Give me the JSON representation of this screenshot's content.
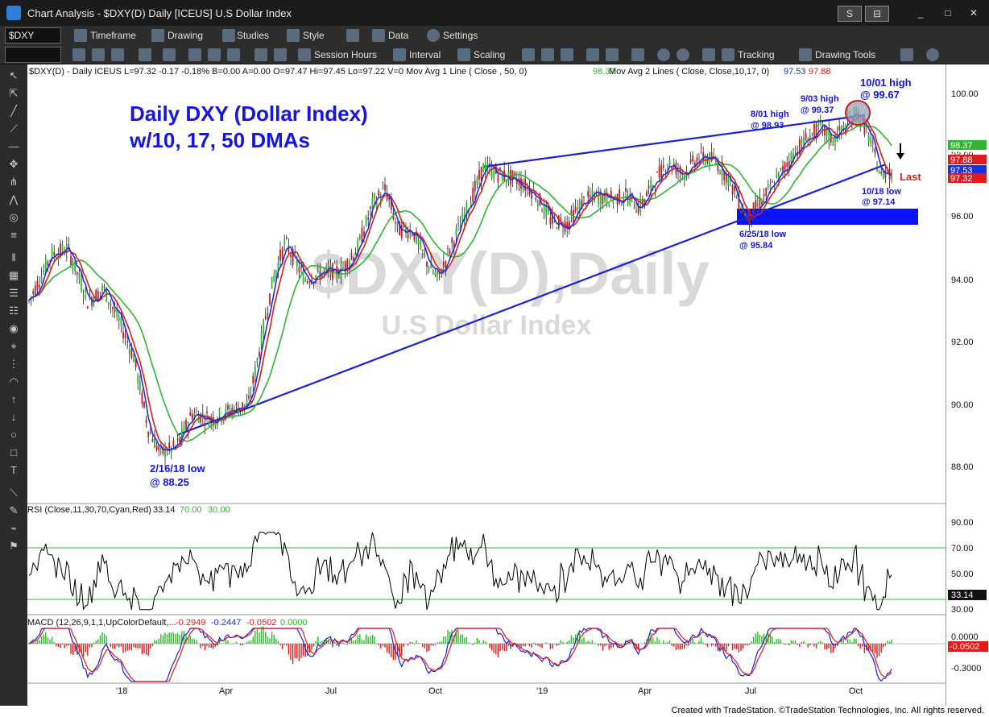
{
  "window": {
    "title": "Chart Analysis - $DXY(D) Daily [ICEUS] U.S Dollar Index",
    "buttons": [
      "S",
      "⊟",
      "_",
      "□",
      "✕"
    ]
  },
  "toolbar1": {
    "symbol": "$DXY",
    "items": [
      "Timeframe",
      "Drawing",
      "Studies",
      "Style",
      "Data",
      "Settings"
    ]
  },
  "toolbar2": {
    "items": [
      "Session Hours",
      "Interval",
      "Scaling",
      "Tracking",
      "Drawing Tools"
    ]
  },
  "chart": {
    "header": "$DXY(D) - Daily  ICEUS  L=97.32  -0.17  -0.18%  B=0.00  A=0.00  O=97.47  Hi=97.45  Lo=97.22  V=0  Mov Avg 1 Line (    Close , 50,        0)",
    "header_ma1": "98.37",
    "header_ma2_label": "Mov Avg 2 Lines (  Close,  Close,10,17,  0)",
    "header_ma2_v1": "97.53",
    "header_ma2_v2": "97.88",
    "title_line1": "Daily DXY (Dollar Index)",
    "title_line2": "w/10, 17, 50 DMAs",
    "watermark_line1": "$DXY(D),Daily",
    "watermark_line2": "U.S Dollar Index",
    "annotations": {
      "low_2_16": [
        "2/16/18 low",
        "@ 88.25"
      ],
      "low_6_25": [
        "6/25/18 low",
        "@ 95.84"
      ],
      "high_8_01": [
        "8/01 high",
        "@ 98.93"
      ],
      "high_9_03": [
        "9/03 high",
        "@ 99.37"
      ],
      "high_10_01": [
        "10/01 high",
        "@ 99.67"
      ],
      "low_10_18": [
        "10/18 low",
        "@ 97.14"
      ],
      "last": "Last"
    },
    "price_axis": [
      "100.00",
      "98.00",
      "96.00",
      "94.00",
      "92.00",
      "90.00",
      "88.00"
    ],
    "price_tags": [
      {
        "value": "98.37",
        "color": "#2fb82f"
      },
      {
        "value": "97.88",
        "color": "#e11b1b"
      },
      {
        "value": "97.53",
        "color": "#1b2fe0"
      },
      {
        "value": "97.32",
        "color": "#e11b1b"
      }
    ],
    "price_tag_hidden": "98.00",
    "date_axis": [
      "'18",
      "Apr",
      "Jul",
      "Oct",
      "'19",
      "Apr",
      "Jul",
      "Oct"
    ]
  },
  "rsi": {
    "header": "RSI (Close,11,30,70,Cyan,Red)",
    "value": "33.14",
    "overbought": "70.00",
    "oversold": "30.00",
    "axis": [
      "90.00",
      "70.00",
      "50.00",
      "30.00"
    ],
    "tag": "33.14"
  },
  "macd": {
    "header": "MACD (12,26,9,1,1,UpColorDefault,...",
    "v1": "-0.2949",
    "v2": "-0.2447",
    "v3": "-0.0502",
    "v4": "0.0000",
    "axis": [
      "0.0000",
      "-0.3000"
    ],
    "tag": "-0.0502"
  },
  "footer": "Created with TradeStation. ©TradeStation Technologies, Inc. All rights reserved.",
  "colors": {
    "price_line": "#1a23d6",
    "ma10": "#1b2fe0",
    "ma17": "#e11b1b",
    "ma50": "#2fb82f",
    "support_box": "#0a12ff",
    "rsi_line": "#000000",
    "macd_line": "#1a23d6",
    "signal_line": "#e11b1b"
  },
  "chart_data": {
    "type": "line",
    "key_points": [
      {
        "x": "2018-02-16",
        "y": 88.25
      },
      {
        "x": "2018-06-25",
        "y": 95.84
      },
      {
        "x": "2018-08-01",
        "y": 98.93
      },
      {
        "x": "2018-09-03",
        "y": 99.37
      },
      {
        "x": "2018-10-01",
        "y": 99.67
      },
      {
        "x": "2018-10-18",
        "y": 97.14
      }
    ],
    "last": 97.32,
    "ma50": 98.37,
    "ma10": 97.53,
    "ma17": 97.88,
    "ylim": [
      87,
      101
    ],
    "rsi_last": 33.14,
    "macd": [
      -0.2949,
      -0.2447,
      -0.0502,
      0.0
    ]
  }
}
